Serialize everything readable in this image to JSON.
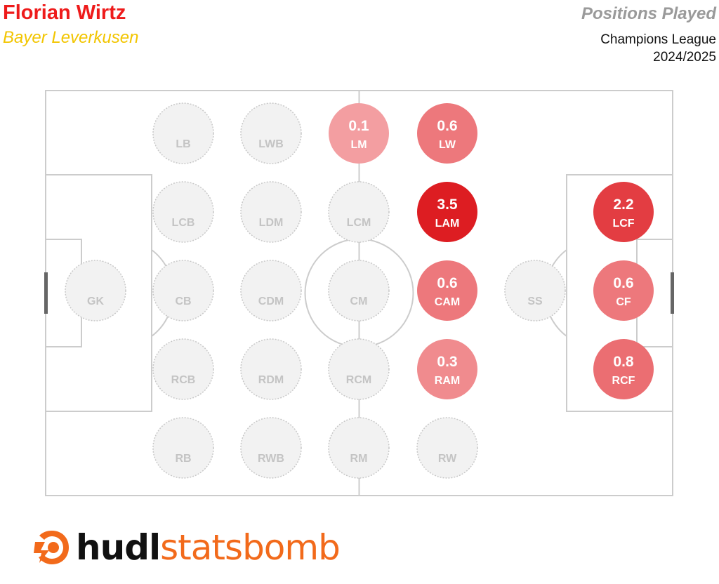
{
  "header": {
    "player_name": "Florian Wirtz",
    "team_name": "Bayer Leverkusen",
    "title": "Positions Played",
    "competition": "Champions League",
    "season": "2024/2025"
  },
  "branding": {
    "logo_text_bold": "hudl",
    "logo_text_regular": "statsbomb",
    "logo_color": "#f26a1b",
    "logo_icon": "statsbomb-logo-icon"
  },
  "colors": {
    "player_name": "#ee1b1b",
    "team_name": "#f2c500",
    "title": "#9a9a9a",
    "pitch_lines": "#cccccc",
    "empty_fill": "#f2f2f2",
    "empty_border": "#c8c8c8",
    "empty_text": "#c4c4c4",
    "scale_low": "#f8b8bb",
    "scale_high": "#dd1d22"
  },
  "chart_data": {
    "type": "heatmap",
    "title": "Positions Played",
    "value_max": 3.5,
    "positions": [
      {
        "label": "GK",
        "value": null
      },
      {
        "label": "LB",
        "value": null
      },
      {
        "label": "LCB",
        "value": null
      },
      {
        "label": "CB",
        "value": null
      },
      {
        "label": "RCB",
        "value": null
      },
      {
        "label": "RB",
        "value": null
      },
      {
        "label": "LWB",
        "value": null
      },
      {
        "label": "LDM",
        "value": null
      },
      {
        "label": "CDM",
        "value": null
      },
      {
        "label": "RDM",
        "value": null
      },
      {
        "label": "RWB",
        "value": null
      },
      {
        "label": "LM",
        "value": 0.1
      },
      {
        "label": "LCM",
        "value": null
      },
      {
        "label": "CM",
        "value": null
      },
      {
        "label": "RCM",
        "value": null
      },
      {
        "label": "RM",
        "value": null
      },
      {
        "label": "LW",
        "value": 0.6
      },
      {
        "label": "LAM",
        "value": 3.5
      },
      {
        "label": "CAM",
        "value": 0.6
      },
      {
        "label": "RAM",
        "value": 0.3
      },
      {
        "label": "RW",
        "value": null
      },
      {
        "label": "SS",
        "value": null
      },
      {
        "label": "LCF",
        "value": 2.2
      },
      {
        "label": "CF",
        "value": 0.6
      },
      {
        "label": "RCF",
        "value": 0.8
      }
    ]
  }
}
